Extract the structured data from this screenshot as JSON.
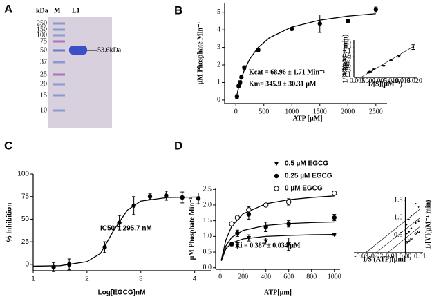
{
  "panel_labels": [
    "A",
    "B",
    "C",
    "D"
  ],
  "gel": {
    "unit_label": "kDa",
    "lanes": [
      "M",
      "L1"
    ],
    "markers": [
      250,
      150,
      100,
      75,
      50,
      37,
      25,
      20,
      15,
      10
    ],
    "band_label": "53.6kDa"
  },
  "chart_data": [
    {
      "type": "scatter",
      "xlabel": "ATP [µM]",
      "ylabel": "µM Phosphate Min⁻¹",
      "annotations": [
        "Kcat = 68.96 ± 1.71 Min⁻¹",
        "Km= 345.9 ± 30.31 µM"
      ],
      "xlim": [
        -200,
        2700
      ],
      "ylim": [
        -0.2,
        5.5
      ],
      "xticks": [
        0,
        500,
        1000,
        1500,
        2000,
        2500
      ],
      "yticks": [
        0,
        1,
        2,
        3,
        4,
        5
      ],
      "series": [
        {
          "marker": "circle",
          "color": "#000000",
          "x": [
            20,
            50,
            75,
            100,
            150,
            400,
            1000,
            1500,
            2000,
            2500
          ],
          "values": [
            0.2,
            0.8,
            1.0,
            1.3,
            1.85,
            2.85,
            4.05,
            4.35,
            4.5,
            5.15
          ],
          "errors": [
            0.1,
            0.1,
            0.1,
            0.1,
            0.1,
            0.1,
            0.08,
            0.5,
            0.08,
            0.15
          ]
        }
      ],
      "fits": [
        {
          "color": "#000000",
          "x": [
            20,
            50,
            100,
            150,
            250,
            400,
            600,
            1000,
            1500,
            2000,
            2500
          ],
          "values": [
            0.31,
            0.71,
            1.25,
            1.69,
            2.35,
            3.0,
            3.55,
            4.16,
            4.55,
            4.78,
            4.92
          ]
        }
      ]
    },
    {
      "type": "scatter",
      "xlabel": "1/[S](µM⁻¹)",
      "ylabel": "1/[V](µM⁻¹ min)",
      "xlim": [
        -0.006,
        0.021
      ],
      "ylim": [
        0,
        1.6
      ],
      "xticks": [
        -0.005,
        {
          "value": 0,
          "label": "0.000"
        },
        0.005,
        {
          "value": 0.01,
          "label": "0.010"
        },
        0.015,
        {
          "value": 0.02,
          "label": "0.020"
        }
      ],
      "yticks": [
        0.1,
        0.3,
        0.5,
        0.7,
        0.9,
        1.1,
        1.3,
        1.5
      ],
      "series": [
        {
          "marker": "circle",
          "color": "#000000",
          "x": [
            0.0004,
            0.0005,
            0.0007,
            0.001,
            0.0025,
            0.0067,
            0.01,
            0.0133,
            0.0195
          ],
          "values": [
            0.2,
            0.22,
            0.25,
            0.24,
            0.35,
            0.5,
            0.75,
            0.9,
            1.3
          ],
          "errors": [
            0.01,
            0.01,
            0.01,
            0.01,
            0.01,
            0.02,
            0.02,
            0.03,
            0.1
          ]
        }
      ],
      "fits": [
        {
          "color": "#000000",
          "x": [
            -0.003,
            0.02
          ],
          "values": [
            0.0,
            1.35
          ]
        }
      ]
    },
    {
      "type": "scatter",
      "xlabel": "Log[EGCG]nM",
      "ylabel": "% Inhibition",
      "annotations": [
        "IC50 = 295.7 nM"
      ],
      "xlim": [
        1,
        4.3
      ],
      "ylim": [
        -7,
        100
      ],
      "xticks": [
        1,
        2,
        3,
        4
      ],
      "yticks": [
        0,
        25,
        50,
        75,
        100
      ],
      "series": [
        {
          "marker": "circle",
          "color": "#000000",
          "x": [
            1.38,
            1.67,
            2.33,
            2.6,
            2.87,
            3.17,
            3.47,
            3.77,
            4.07
          ],
          "values": [
            -3,
            0,
            19,
            46,
            65,
            75,
            76,
            74,
            73
          ],
          "errors": [
            5,
            6,
            6,
            8,
            10,
            3,
            5,
            6,
            6
          ]
        }
      ],
      "fits": [
        {
          "color": "#000000",
          "x": [
            1.0,
            1.5,
            2.0,
            2.25,
            2.5,
            2.75,
            3.0,
            3.5,
            4.1
          ],
          "values": [
            -2,
            -1.5,
            3,
            12,
            38,
            60,
            70,
            74,
            74.5
          ]
        }
      ]
    },
    {
      "type": "scatter",
      "xlabel": "ATP[µm]",
      "ylabel": "µM Phosphate Min⁻¹",
      "annotations": [
        "Ki = 0.387 ± 0.034 µM"
      ],
      "legend": "top",
      "xlim": [
        -40,
        1050
      ],
      "ylim": [
        -0.05,
        2.55
      ],
      "xticks": [
        0,
        200,
        400,
        600,
        800,
        1000
      ],
      "yticks": [
        {
          "value": 0,
          "label": "0.0"
        },
        0.5,
        {
          "value": 1,
          "label": "1.0"
        },
        1.5,
        {
          "value": 2,
          "label": "2.0"
        },
        2.5
      ],
      "series": [
        {
          "name": "0.5 µM EGCG",
          "marker": "triangle",
          "color": "#000000",
          "x": [
            100,
            150,
            250,
            400,
            600,
            1000
          ],
          "values": [
            null,
            0.7,
            0.95,
            0.85,
            0.75,
            1.05
          ],
          "errors": [
            null,
            0.1,
            0.1,
            0.1,
            0.2,
            0.02
          ]
        },
        {
          "name": "0.25 µM EGCG",
          "marker": "circle",
          "color": "#000000",
          "x": [
            100,
            150,
            250,
            400,
            600,
            1000
          ],
          "values": [
            0.75,
            1.1,
            1.7,
            1.3,
            1.4,
            1.6
          ],
          "errors": [
            0.05,
            0.1,
            0.15,
            0.15,
            0.1,
            0.1
          ]
        },
        {
          "name": "0 µM EGCG",
          "marker": "open-circle",
          "color": "#000000",
          "x": [
            100,
            150,
            250,
            400,
            600,
            1000
          ],
          "values": [
            1.4,
            1.6,
            1.85,
            2.0,
            2.1,
            2.38
          ],
          "errors": [
            0.05,
            0.05,
            0.1,
            0.05,
            0.1,
            0.03
          ]
        }
      ],
      "fits": [
        {
          "color": "#000000",
          "x": [
            10,
            50,
            100,
            200,
            400,
            600,
            800,
            1000
          ],
          "values": [
            0.22,
            0.61,
            0.79,
            0.92,
            1.0,
            1.03,
            1.05,
            1.06
          ]
        },
        {
          "color": "#000000",
          "x": [
            10,
            50,
            100,
            200,
            400,
            600,
            800,
            1000
          ],
          "values": [
            0.22,
            0.7,
            0.97,
            1.19,
            1.35,
            1.41,
            1.44,
            1.46
          ]
        },
        {
          "color": "#000000",
          "x": [
            10,
            50,
            100,
            200,
            400,
            600,
            800,
            1000
          ],
          "values": [
            0.25,
            0.89,
            1.32,
            1.72,
            2.04,
            2.17,
            2.24,
            2.29
          ]
        }
      ]
    },
    {
      "type": "scatter",
      "xlabel": "1/S (ATP)[µm]⁻¹",
      "ylabel": "1/[V](µM⁻¹ min)",
      "xlim": [
        -0.035,
        0.012
      ],
      "ylim": [
        0,
        1.6
      ],
      "xticks": [
        -0.03,
        -0.02,
        -0.01,
        {
          "value": 0,
          "label": "0.00"
        },
        0.01
      ],
      "yticks": [
        0.5,
        {
          "value": 1,
          "label": "1.0"
        },
        1.5
      ],
      "series": [
        {
          "marker": "triangle",
          "color": "#000000",
          "x": [
            0.001,
            0.0025,
            0.004,
            0.007,
            0.009
          ],
          "values": [
            0.8,
            0.95,
            1.05,
            1.4,
            1.3
          ]
        },
        {
          "marker": "circle",
          "color": "#000000",
          "x": [
            0.001,
            0.0025,
            0.004,
            0.007,
            0.009
          ],
          "values": [
            0.55,
            0.6,
            0.7,
            0.85,
            0.9
          ]
        },
        {
          "marker": "open-circle",
          "color": "#000000",
          "x": [
            0.001,
            0.0025,
            0.004,
            0.007,
            0.009
          ],
          "values": [
            0.3,
            0.35,
            0.4,
            0.55,
            0.6
          ]
        }
      ],
      "fits": [
        {
          "color": "#000000",
          "x": [
            -0.027,
            0.01
          ],
          "values": [
            0.0,
            1.25
          ]
        },
        {
          "color": "#000000",
          "x": [
            -0.02,
            0.01
          ],
          "values": [
            0.0,
            1.0
          ]
        },
        {
          "color": "#000000",
          "x": [
            -0.012,
            0.01
          ],
          "values": [
            0.0,
            0.75
          ]
        }
      ]
    }
  ]
}
